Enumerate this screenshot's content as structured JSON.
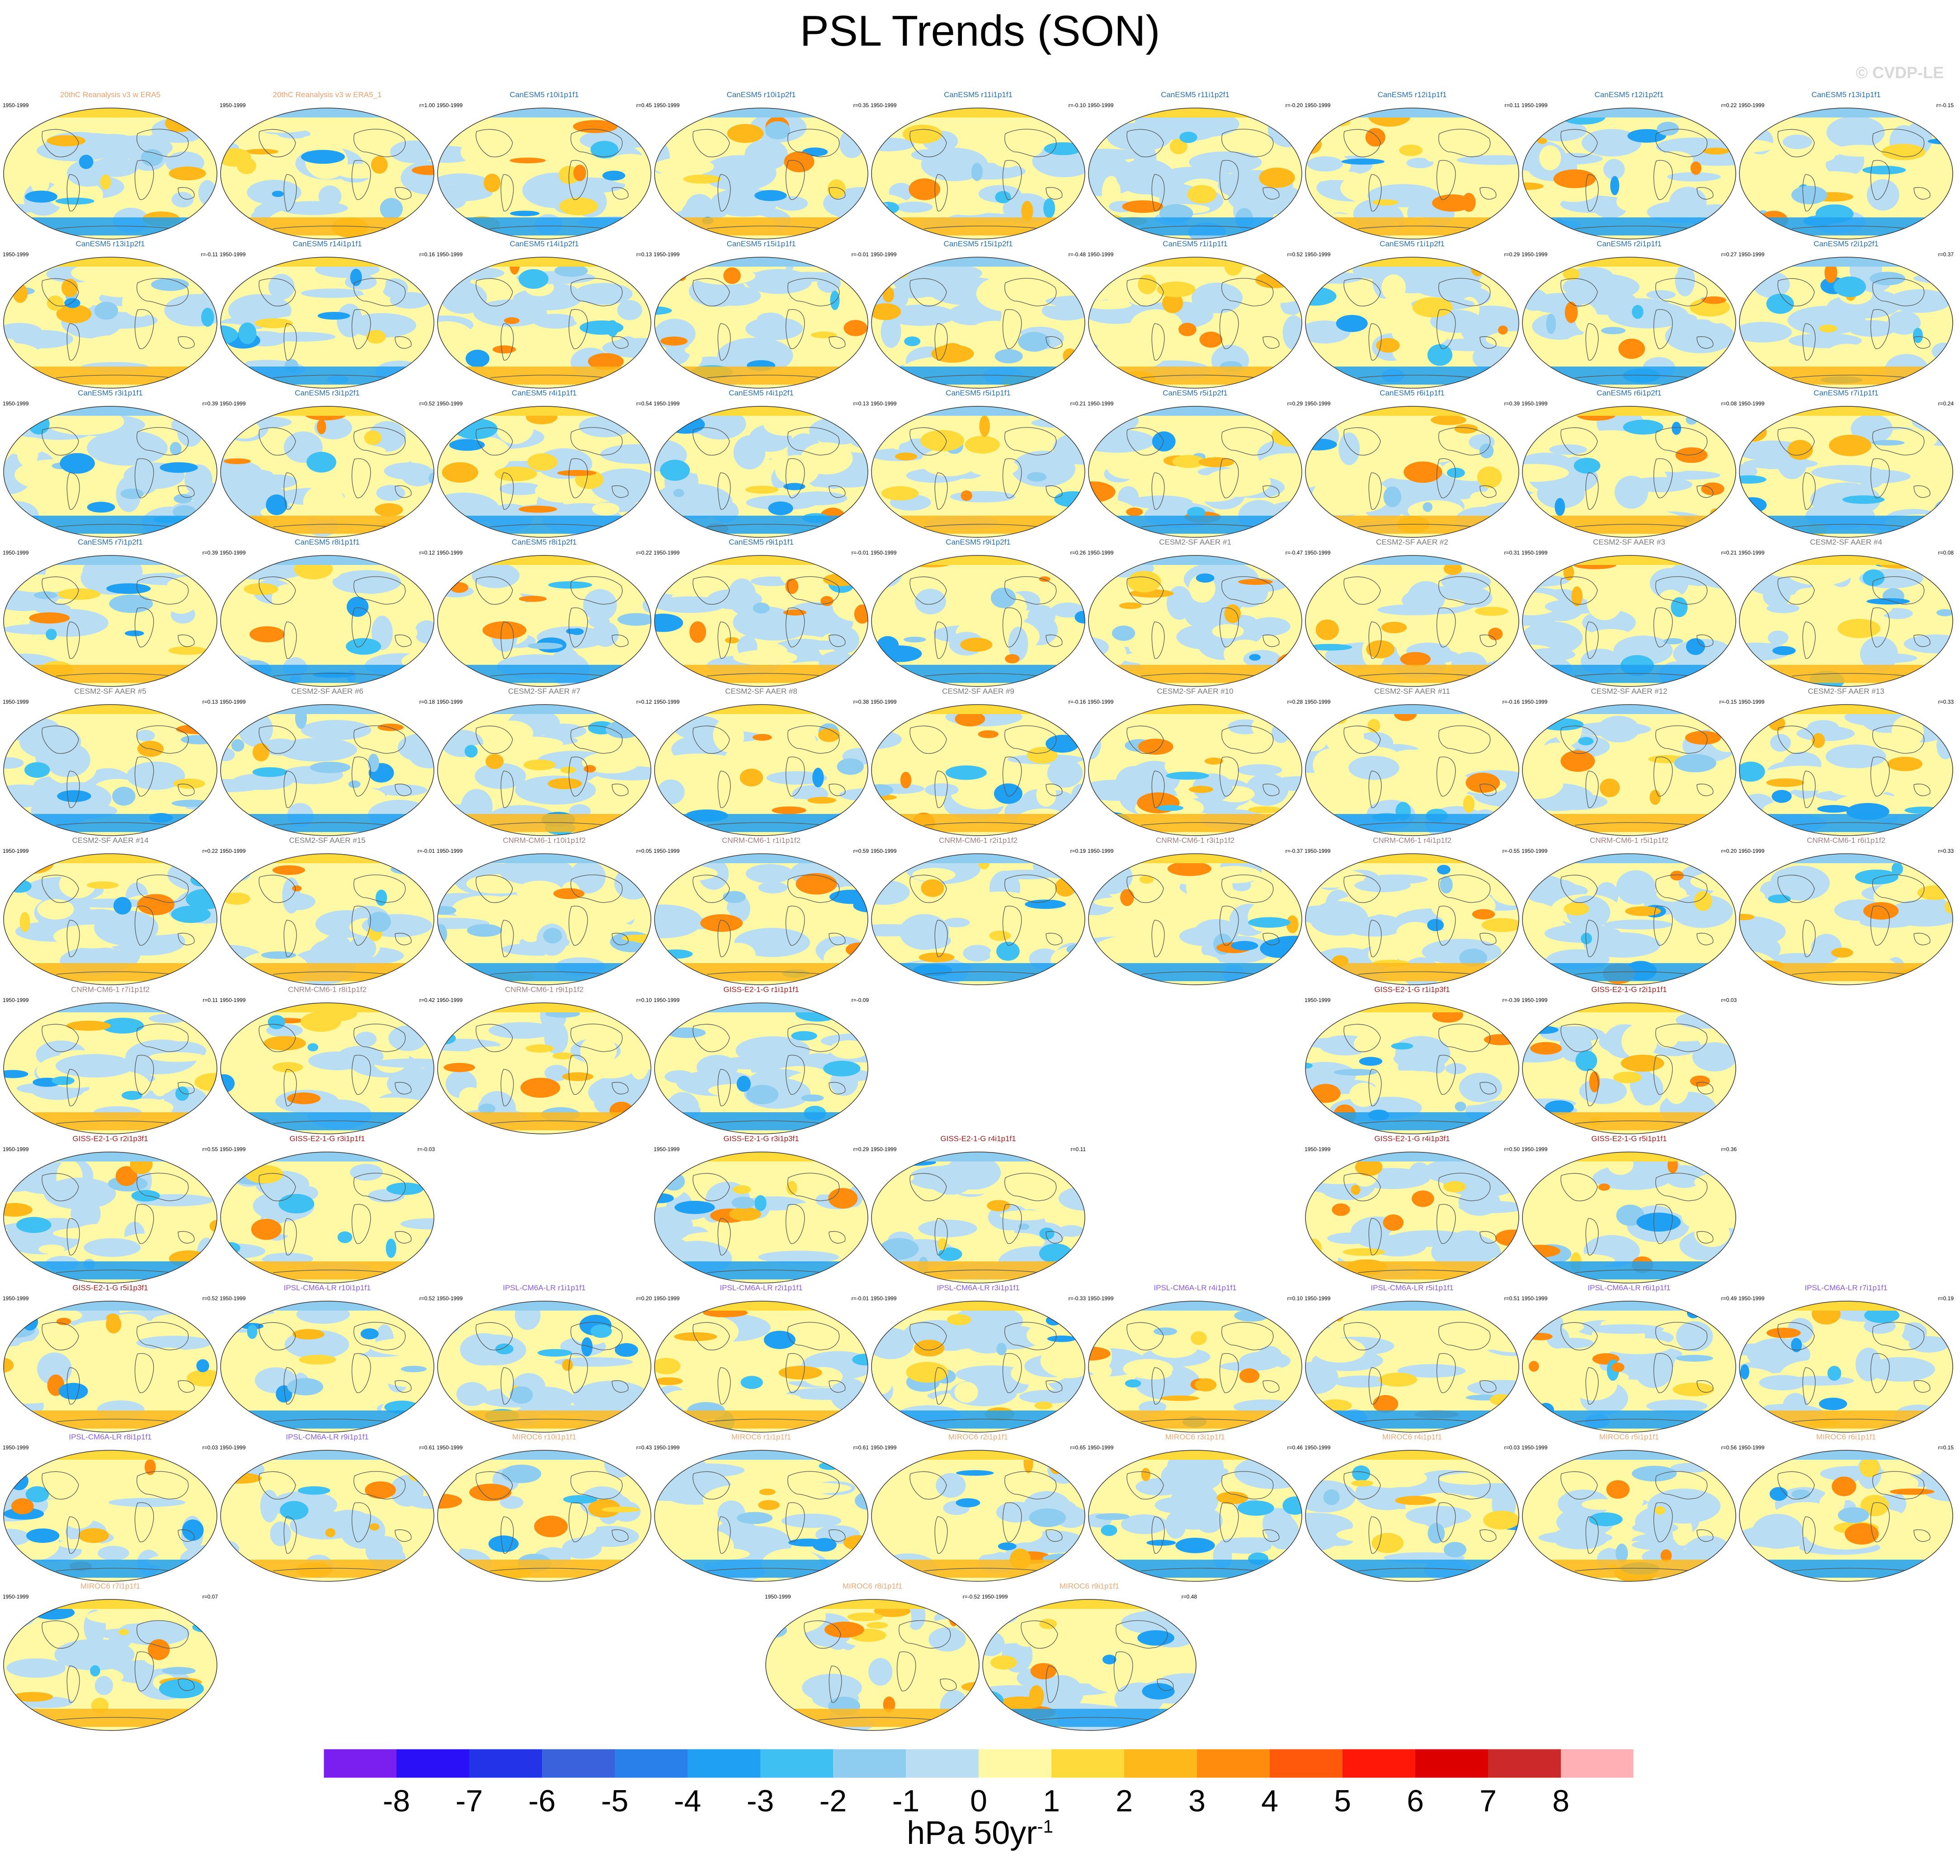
{
  "title": "PSL Trends (SON)",
  "watermark": "© CVDP-LE",
  "units": {
    "main": "hPa 50yr",
    "exponent": "-1"
  },
  "colorbar": {
    "colors": [
      "#7b1ff0",
      "#2a10f7",
      "#2233e8",
      "#3a62dc",
      "#2a80ea",
      "#1fa0f2",
      "#3ec0f2",
      "#8ecdef",
      "#b9def3",
      "#fff8a4",
      "#ffda3a",
      "#ffb81a",
      "#ff8c0c",
      "#ff5a0c",
      "#ff1808",
      "#dd0000",
      "#cc2a2a",
      "#ffb0b4"
    ],
    "labels": [
      "-8",
      "-7",
      "-6",
      "-5",
      "-4",
      "-3",
      "-2",
      "-1",
      "0",
      "1",
      "2",
      "3",
      "4",
      "5",
      "6",
      "7",
      "8"
    ]
  },
  "chart_data": {
    "type": "heatmap",
    "title": "PSL Trends (SON)",
    "variable": "PSL",
    "season": "SON",
    "units": "hPa 50yr-1",
    "colorbar_range": [
      -8,
      8
    ],
    "panels": [
      {
        "slot": 0,
        "title": "20thC Reanalysis v3 w ERA5",
        "years": "1950-1999",
        "r": "",
        "group": "obs"
      },
      {
        "slot": 1,
        "title": "20thC Reanalysis v3 w ERA5_1",
        "years": "1950-1999",
        "r": "r=1.00",
        "group": "obs"
      },
      {
        "slot": 2,
        "title": "CanESM5 r10i1p1f1",
        "years": "1950-1999",
        "r": "r=0.45",
        "group": "canesm"
      },
      {
        "slot": 3,
        "title": "CanESM5 r10i1p2f1",
        "years": "1950-1999",
        "r": "r=0.35",
        "group": "canesm"
      },
      {
        "slot": 4,
        "title": "CanESM5 r11i1p1f1",
        "years": "1950-1999",
        "r": "r=-0.10",
        "group": "canesm"
      },
      {
        "slot": 5,
        "title": "CanESM5 r11i1p2f1",
        "years": "1950-1999",
        "r": "r=-0.20",
        "group": "canesm"
      },
      {
        "slot": 6,
        "title": "CanESM5 r12i1p1f1",
        "years": "1950-1999",
        "r": "r=0.11",
        "group": "canesm"
      },
      {
        "slot": 7,
        "title": "CanESM5 r12i1p2f1",
        "years": "1950-1999",
        "r": "r=0.22",
        "group": "canesm"
      },
      {
        "slot": 8,
        "title": "CanESM5 r13i1p1f1",
        "years": "1950-1999",
        "r": "r=-0.15",
        "group": "canesm"
      },
      {
        "slot": 9,
        "title": "CanESM5 r13i1p2f1",
        "years": "1950-1999",
        "r": "r=-0.11",
        "group": "canesm"
      },
      {
        "slot": 10,
        "title": "CanESM5 r14i1p1f1",
        "years": "1950-1999",
        "r": "r=0.16",
        "group": "canesm"
      },
      {
        "slot": 11,
        "title": "CanESM5 r14i1p2f1",
        "years": "1950-1999",
        "r": "r=0.13",
        "group": "canesm"
      },
      {
        "slot": 12,
        "title": "CanESM5 r15i1p1f1",
        "years": "1950-1999",
        "r": "r=-0.01",
        "group": "canesm"
      },
      {
        "slot": 13,
        "title": "CanESM5 r15i1p2f1",
        "years": "1950-1999",
        "r": "r=-0.48",
        "group": "canesm"
      },
      {
        "slot": 14,
        "title": "CanESM5 r1i1p1f1",
        "years": "1950-1999",
        "r": "r=0.52",
        "group": "canesm"
      },
      {
        "slot": 15,
        "title": "CanESM5 r1i1p2f1",
        "years": "1950-1999",
        "r": "r=0.29",
        "group": "canesm"
      },
      {
        "slot": 16,
        "title": "CanESM5 r2i1p1f1",
        "years": "1950-1999",
        "r": "r=0.27",
        "group": "canesm"
      },
      {
        "slot": 17,
        "title": "CanESM5 r2i1p2f1",
        "years": "1950-1999",
        "r": "r=0.37",
        "group": "canesm"
      },
      {
        "slot": 18,
        "title": "CanESM5 r3i1p1f1",
        "years": "1950-1999",
        "r": "r=0.39",
        "group": "canesm"
      },
      {
        "slot": 19,
        "title": "CanESM5 r3i1p2f1",
        "years": "1950-1999",
        "r": "r=0.52",
        "group": "canesm"
      },
      {
        "slot": 20,
        "title": "CanESM5 r4i1p1f1",
        "years": "1950-1999",
        "r": "r=0.54",
        "group": "canesm"
      },
      {
        "slot": 21,
        "title": "CanESM5 r4i1p2f1",
        "years": "1950-1999",
        "r": "r=0.13",
        "group": "canesm"
      },
      {
        "slot": 22,
        "title": "CanESM5 r5i1p1f1",
        "years": "1950-1999",
        "r": "r=0.21",
        "group": "canesm"
      },
      {
        "slot": 23,
        "title": "CanESM5 r5i1p2f1",
        "years": "1950-1999",
        "r": "r=0.29",
        "group": "canesm"
      },
      {
        "slot": 24,
        "title": "CanESM5 r6i1p1f1",
        "years": "1950-1999",
        "r": "r=0.39",
        "group": "canesm"
      },
      {
        "slot": 25,
        "title": "CanESM5 r6i1p2f1",
        "years": "1950-1999",
        "r": "r=0.08",
        "group": "canesm"
      },
      {
        "slot": 26,
        "title": "CanESM5 r7i1p1f1",
        "years": "1950-1999",
        "r": "r=0.24",
        "group": "canesm"
      },
      {
        "slot": 27,
        "title": "CanESM5 r7i1p2f1",
        "years": "1950-1999",
        "r": "r=0.39",
        "group": "canesm"
      },
      {
        "slot": 28,
        "title": "CanESM5 r8i1p1f1",
        "years": "1950-1999",
        "r": "r=0.12",
        "group": "canesm"
      },
      {
        "slot": 29,
        "title": "CanESM5 r8i1p2f1",
        "years": "1950-1999",
        "r": "r=0.22",
        "group": "canesm"
      },
      {
        "slot": 30,
        "title": "CanESM5 r9i1p1f1",
        "years": "1950-1999",
        "r": "r=-0.01",
        "group": "canesm"
      },
      {
        "slot": 31,
        "title": "CanESM5 r9i1p2f1",
        "years": "1950-1999",
        "r": "r=0.26",
        "group": "canesm"
      },
      {
        "slot": 32,
        "title": "CESM2-SF AAER #1",
        "years": "1950-1999",
        "r": "r=-0.47",
        "group": "cesm"
      },
      {
        "slot": 33,
        "title": "CESM2-SF AAER #2",
        "years": "1950-1999",
        "r": "r=0.31",
        "group": "cesm"
      },
      {
        "slot": 34,
        "title": "CESM2-SF AAER #3",
        "years": "1950-1999",
        "r": "r=0.21",
        "group": "cesm"
      },
      {
        "slot": 35,
        "title": "CESM2-SF AAER #4",
        "years": "1950-1999",
        "r": "r=0.08",
        "group": "cesm"
      },
      {
        "slot": 36,
        "title": "CESM2-SF AAER #5",
        "years": "1950-1999",
        "r": "r=0.13",
        "group": "cesm"
      },
      {
        "slot": 37,
        "title": "CESM2-SF AAER #6",
        "years": "1950-1999",
        "r": "r=0.18",
        "group": "cesm"
      },
      {
        "slot": 38,
        "title": "CESM2-SF AAER #7",
        "years": "1950-1999",
        "r": "r=0.12",
        "group": "cesm"
      },
      {
        "slot": 39,
        "title": "CESM2-SF AAER #8",
        "years": "1950-1999",
        "r": "r=0.38",
        "group": "cesm"
      },
      {
        "slot": 40,
        "title": "CESM2-SF AAER #9",
        "years": "1950-1999",
        "r": "r=-0.16",
        "group": "cesm"
      },
      {
        "slot": 41,
        "title": "CESM2-SF AAER #10",
        "years": "1950-1999",
        "r": "r=0.28",
        "group": "cesm"
      },
      {
        "slot": 42,
        "title": "CESM2-SF AAER #11",
        "years": "1950-1999",
        "r": "r=-0.16",
        "group": "cesm"
      },
      {
        "slot": 43,
        "title": "CESM2-SF AAER #12",
        "years": "1950-1999",
        "r": "r=-0.15",
        "group": "cesm"
      },
      {
        "slot": 44,
        "title": "CESM2-SF AAER #13",
        "years": "1950-1999",
        "r": "r=0.33",
        "group": "cesm"
      },
      {
        "slot": 45,
        "title": "CESM2-SF AAER #14",
        "years": "1950-1999",
        "r": "r=0.22",
        "group": "cesm"
      },
      {
        "slot": 46,
        "title": "CESM2-SF AAER #15",
        "years": "1950-1999",
        "r": "r=-0.01",
        "group": "cesm"
      },
      {
        "slot": 47,
        "title": "CNRM-CM6-1 r10i1p1f2",
        "years": "1950-1999",
        "r": "r=0.05",
        "group": "cnrm"
      },
      {
        "slot": 48,
        "title": "CNRM-CM6-1 r1i1p1f2",
        "years": "1950-1999",
        "r": "r=0.59",
        "group": "cnrm"
      },
      {
        "slot": 49,
        "title": "CNRM-CM6-1 r2i1p1f2",
        "years": "1950-1999",
        "r": "r=0.19",
        "group": "cnrm"
      },
      {
        "slot": 50,
        "title": "CNRM-CM6-1 r3i1p1f2",
        "years": "1950-1999",
        "r": "r=-0.37",
        "group": "cnrm"
      },
      {
        "slot": 51,
        "title": "CNRM-CM6-1 r4i1p1f2",
        "years": "1950-1999",
        "r": "r=-0.55",
        "group": "cnrm"
      },
      {
        "slot": 52,
        "title": "CNRM-CM6-1 r5i1p1f2",
        "years": "1950-1999",
        "r": "r=0.20",
        "group": "cnrm"
      },
      {
        "slot": 53,
        "title": "CNRM-CM6-1 r6i1p1f2",
        "years": "1950-1999",
        "r": "r=0.33",
        "group": "cnrm"
      },
      {
        "slot": 54,
        "title": "CNRM-CM6-1 r7i1p1f2",
        "years": "1950-1999",
        "r": "r=0.11",
        "group": "cnrm"
      },
      {
        "slot": 55,
        "title": "CNRM-CM6-1 r8i1p1f2",
        "years": "1950-1999",
        "r": "r=0.42",
        "group": "cnrm"
      },
      {
        "slot": 56,
        "title": "CNRM-CM6-1 r9i1p1f2",
        "years": "1950-1999",
        "r": "r=0.10",
        "group": "cnrm"
      },
      {
        "slot": 57,
        "title": "GISS-E2-1-G r1i1p1f1",
        "years": "1950-1999",
        "r": "r=-0.09",
        "group": "giss"
      },
      {
        "slot": 60,
        "title": "GISS-E2-1-G r1i1p3f1",
        "years": "1950-1999",
        "r": "r=-0.39",
        "group": "giss"
      },
      {
        "slot": 61,
        "title": "GISS-E2-1-G r2i1p1f1",
        "years": "1950-1999",
        "r": "r=0.03",
        "group": "giss"
      },
      {
        "slot": 63,
        "title": "GISS-E2-1-G r2i1p3f1",
        "years": "1950-1999",
        "r": "r=0.55",
        "group": "giss"
      },
      {
        "slot": 64,
        "title": "GISS-E2-1-G r3i1p1f1",
        "years": "1950-1999",
        "r": "r=-0.03",
        "group": "giss"
      },
      {
        "slot": 66,
        "title": "GISS-E2-1-G r3i1p3f1",
        "years": "1950-1999",
        "r": "r=0.29",
        "group": "giss"
      },
      {
        "slot": 67,
        "title": "GISS-E2-1-G r4i1p1f1",
        "years": "1950-1999",
        "r": "r=0.11",
        "group": "giss"
      },
      {
        "slot": 69,
        "title": "GISS-E2-1-G r4i1p3f1",
        "years": "1950-1999",
        "r": "r=0.50",
        "group": "giss"
      },
      {
        "slot": 70,
        "title": "GISS-E2-1-G r5i1p1f1",
        "years": "1950-1999",
        "r": "r=0.36",
        "group": "giss"
      },
      {
        "slot": 72,
        "title": "GISS-E2-1-G r5i1p3f1",
        "years": "1950-1999",
        "r": "r=0.52",
        "group": "giss"
      },
      {
        "slot": 73,
        "title": "IPSL-CM6A-LR r10i1p1f1",
        "years": "1950-1999",
        "r": "r=0.52",
        "group": "ipsl"
      },
      {
        "slot": 74,
        "title": "IPSL-CM6A-LR r1i1p1f1",
        "years": "1950-1999",
        "r": "r=0.20",
        "group": "ipsl"
      },
      {
        "slot": 75,
        "title": "IPSL-CM6A-LR r2i1p1f1",
        "years": "1950-1999",
        "r": "r=-0.01",
        "group": "ipsl"
      },
      {
        "slot": 76,
        "title": "IPSL-CM6A-LR r3i1p1f1",
        "years": "1950-1999",
        "r": "r=-0.33",
        "group": "ipsl"
      },
      {
        "slot": 77,
        "title": "IPSL-CM6A-LR r4i1p1f1",
        "years": "1950-1999",
        "r": "r=0.10",
        "group": "ipsl"
      },
      {
        "slot": 78,
        "title": "IPSL-CM6A-LR r5i1p1f1",
        "years": "1950-1999",
        "r": "r=0.51",
        "group": "ipsl"
      },
      {
        "slot": 79,
        "title": "IPSL-CM6A-LR r6i1p1f1",
        "years": "1950-1999",
        "r": "r=0.49",
        "group": "ipsl"
      },
      {
        "slot": 80,
        "title": "IPSL-CM6A-LR r7i1p1f1",
        "years": "1950-1999",
        "r": "r=0.19",
        "group": "ipsl"
      },
      {
        "slot": 81,
        "title": "IPSL-CM6A-LR r8i1p1f1",
        "years": "1950-1999",
        "r": "r=0.03",
        "group": "ipsl"
      },
      {
        "slot": 82,
        "title": "IPSL-CM6A-LR r9i1p1f1",
        "years": "1950-1999",
        "r": "r=0.61",
        "group": "ipsl"
      },
      {
        "slot": 83,
        "title": "MIROC6 r10i1p1f1",
        "years": "1950-1999",
        "r": "r=0.43",
        "group": "miroc"
      },
      {
        "slot": 84,
        "title": "MIROC6 r1i1p1f1",
        "years": "1950-1999",
        "r": "r=0.61",
        "group": "miroc"
      },
      {
        "slot": 85,
        "title": "MIROC6 r2i1p1f1",
        "years": "1950-1999",
        "r": "r=0.65",
        "group": "miroc"
      },
      {
        "slot": 86,
        "title": "MIROC6 r3i1p1f1",
        "years": "1950-1999",
        "r": "r=0.46",
        "group": "miroc"
      },
      {
        "slot": 87,
        "title": "MIROC6 r4i1p1f1",
        "years": "1950-1999",
        "r": "r=0.03",
        "group": "miroc"
      },
      {
        "slot": 88,
        "title": "MIROC6 r5i1p1f1",
        "years": "1950-1999",
        "r": "r=0.56",
        "group": "miroc"
      },
      {
        "slot": 89,
        "title": "MIROC6 r6i1p1f1",
        "years": "1950-1999",
        "r": "r=0.15",
        "group": "miroc"
      },
      {
        "slot": 90,
        "title": "MIROC6 r7i1p1f1",
        "years": "1950-1999",
        "r": "r=0.07",
        "group": "miroc"
      },
      {
        "slot": 91,
        "title": "MIROC6 r8i1p1f1",
        "years": "1950-1999",
        "r": "r=-0.52",
        "group": "miroc"
      },
      {
        "slot": 92,
        "title": "MIROC6 r9i1p1f1",
        "years": "1950-1999",
        "r": "r=0.48",
        "group": "miroc"
      }
    ]
  },
  "group_colors": {
    "obs": "#e8a070",
    "canesm": "#2a6fa8",
    "cesm": "#7a7a7a",
    "cnrm": "#a08080",
    "giss": "#a02020",
    "ipsl": "#8a5cd8",
    "miroc": "#e8a878"
  }
}
